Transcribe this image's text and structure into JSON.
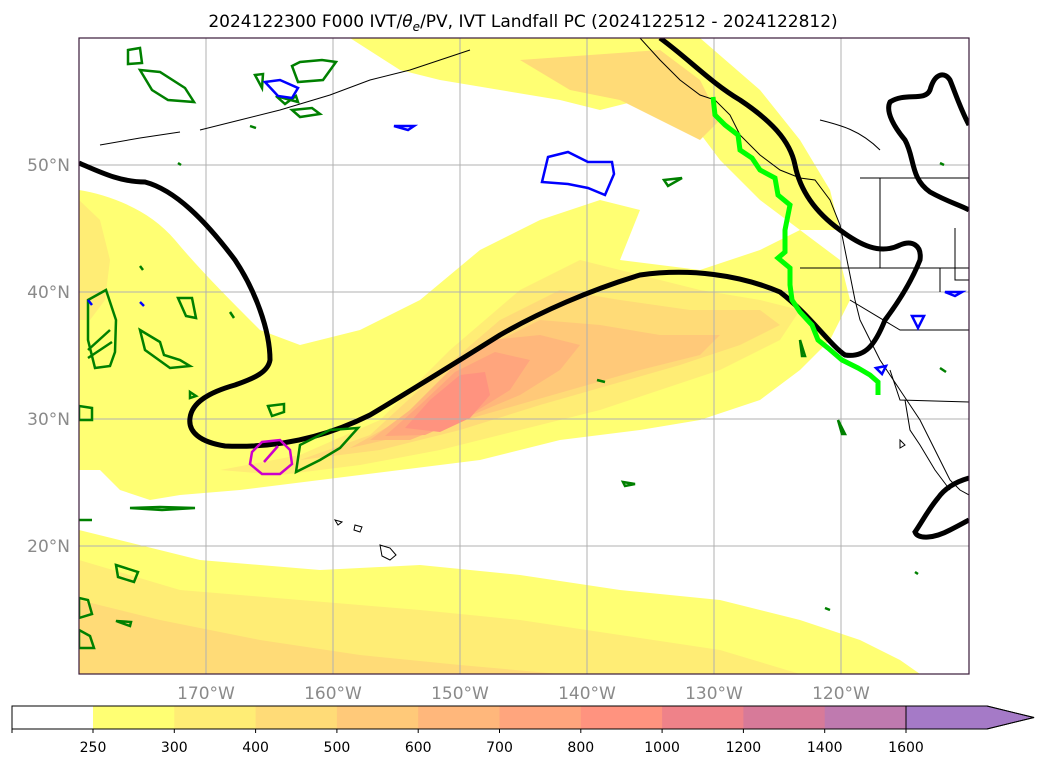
{
  "title_main": "2024122300 F000 IVT/",
  "title_theta": "θ",
  "title_sub": "e",
  "title_rest": "/PV, IVT Landfall PC (2024122512 - 2024122812)",
  "lon_labels": [
    "170°W",
    "160°W",
    "150°W",
    "140°W",
    "130°W",
    "120°W"
  ],
  "lat_labels": [
    "50°N",
    "40°N",
    "30°N",
    "20°N"
  ],
  "colorbar": {
    "ticks": [
      "250",
      "300",
      "400",
      "500",
      "600",
      "700",
      "800",
      "1000",
      "1200",
      "1400",
      "1600"
    ],
    "colors": [
      "#ffff73",
      "#ffed75",
      "#ffdb77",
      "#ffc979",
      "#ffb77b",
      "#ffa57d",
      "#ff937f",
      "#ef8289",
      "#d77a99",
      "#bf7aaf",
      "#a57ac7"
    ]
  },
  "colors": {
    "ivt_contour": "#000000",
    "landfall": "#00ff00",
    "pv_green": "#008000",
    "pv_blue": "#0000ff",
    "pv_magenta": "#cc00cc"
  }
}
